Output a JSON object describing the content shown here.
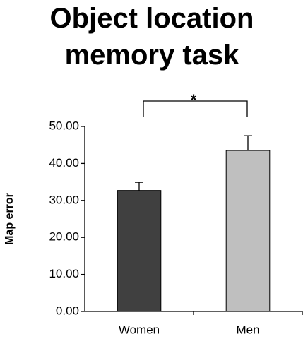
{
  "chart_data": {
    "type": "bar",
    "title": "Object location memory task",
    "ylabel": "Map error",
    "categories": [
      "Women",
      "Men"
    ],
    "values": [
      32.7,
      43.5
    ],
    "errors": [
      2.2,
      4.0
    ],
    "colors": [
      "#404040",
      "#bfbfbf"
    ],
    "ylim": [
      0,
      50
    ],
    "yticks": [
      {
        "value": 0,
        "label": "0.00"
      },
      {
        "value": 10,
        "label": "10.00"
      },
      {
        "value": 20,
        "label": "20.00"
      },
      {
        "value": 30,
        "label": "30.00"
      },
      {
        "value": 40,
        "label": "40.00"
      },
      {
        "value": 50,
        "label": "50.00"
      }
    ],
    "significance_label": "*"
  }
}
